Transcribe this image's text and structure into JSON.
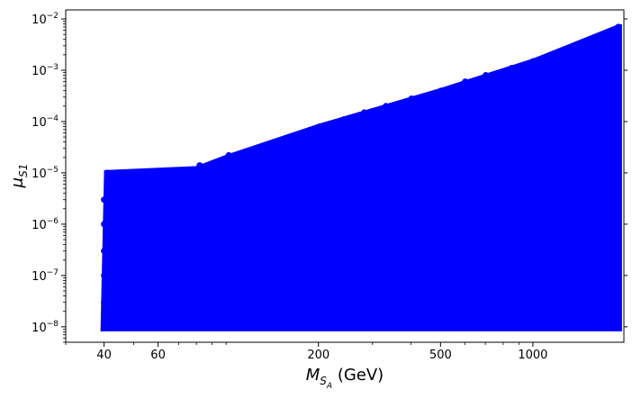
{
  "chart_data": {
    "type": "scatter",
    "xlabel": {
      "base": "M",
      "sub": "S",
      "subsub": "A",
      "unit": "(GeV)"
    },
    "ylabel": {
      "base": "μ",
      "sub": "S1"
    },
    "x_scale": "log",
    "y_scale": "log",
    "xlim": [
      30,
      1980
    ],
    "ylim": [
      5e-09,
      0.015
    ],
    "x_ticks": [
      {
        "value": 40,
        "label": "40"
      },
      {
        "value": 60,
        "label": "60"
      },
      {
        "value": 200,
        "label": "200"
      },
      {
        "value": 500,
        "label": "500"
      },
      {
        "value": 1000,
        "label": "1000"
      }
    ],
    "y_ticks": [
      {
        "value": 1e-08,
        "label_base": "10",
        "label_exp": "−8"
      },
      {
        "value": 1e-07,
        "label_base": "10",
        "label_exp": "−7"
      },
      {
        "value": 1e-06,
        "label_base": "10",
        "label_exp": "−6"
      },
      {
        "value": 1e-05,
        "label_base": "10",
        "label_exp": "−5"
      },
      {
        "value": 0.0001,
        "label_base": "10",
        "label_exp": "−4"
      },
      {
        "value": 0.001,
        "label_base": "10",
        "label_exp": "−3"
      },
      {
        "value": 0.01,
        "label_base": "10",
        "label_exp": "−2"
      }
    ],
    "grid": false,
    "series": [
      {
        "color": "#0000ff",
        "marker": "circle",
        "upper_envelope": [
          {
            "x": 40,
            "y": 1e-05
          },
          {
            "x": 80,
            "y": 1.2e-05
          },
          {
            "x": 100,
            "y": 2e-05
          },
          {
            "x": 200,
            "y": 8e-05
          },
          {
            "x": 500,
            "y": 0.0004
          },
          {
            "x": 1000,
            "y": 0.0015
          },
          {
            "x": 1900,
            "y": 0.007
          }
        ],
        "points": [
          {
            "x": 40,
            "y": 1e-08
          },
          {
            "x": 40,
            "y": 3e-08
          },
          {
            "x": 40,
            "y": 1e-07
          },
          {
            "x": 40,
            "y": 3e-07
          },
          {
            "x": 40,
            "y": 1e-06
          },
          {
            "x": 40,
            "y": 3e-06
          },
          {
            "x": 41,
            "y": 1e-05
          },
          {
            "x": 45,
            "y": 1.1e-08
          },
          {
            "x": 45,
            "y": 5e-08
          },
          {
            "x": 45,
            "y": 5e-07
          },
          {
            "x": 45,
            "y": 5e-06
          },
          {
            "x": 50,
            "y": 1.2e-08
          },
          {
            "x": 50,
            "y": 2e-07
          },
          {
            "x": 50,
            "y": 2e-06
          },
          {
            "x": 50,
            "y": 9e-06
          },
          {
            "x": 55,
            "y": 1e-08
          },
          {
            "x": 55,
            "y": 8e-08
          },
          {
            "x": 55,
            "y": 8e-07
          },
          {
            "x": 55,
            "y": 1e-05
          },
          {
            "x": 60,
            "y": 1.1e-08
          },
          {
            "x": 60,
            "y": 3e-08
          },
          {
            "x": 60,
            "y": 4e-07
          },
          {
            "x": 60,
            "y": 4e-06
          },
          {
            "x": 60,
            "y": 1e-05
          },
          {
            "x": 70,
            "y": 1e-08
          },
          {
            "x": 70,
            "y": 1.5e-07
          },
          {
            "x": 70,
            "y": 1.5e-06
          },
          {
            "x": 70,
            "y": 1.1e-05
          },
          {
            "x": 80,
            "y": 1.2e-08
          },
          {
            "x": 80,
            "y": 6e-08
          },
          {
            "x": 80,
            "y": 6e-07
          },
          {
            "x": 80,
            "y": 6e-06
          },
          {
            "x": 82,
            "y": 1.4e-05
          },
          {
            "x": 90,
            "y": 1e-08
          },
          {
            "x": 90,
            "y": 2.5e-07
          },
          {
            "x": 90,
            "y": 2.5e-06
          },
          {
            "x": 92,
            "y": 1.6e-05
          },
          {
            "x": 100,
            "y": 1.1e-08
          },
          {
            "x": 100,
            "y": 9e-08
          },
          {
            "x": 100,
            "y": 9e-07
          },
          {
            "x": 100,
            "y": 9e-06
          },
          {
            "x": 102,
            "y": 2.2e-05
          },
          {
            "x": 120,
            "y": 1e-08
          },
          {
            "x": 120,
            "y": 3.5e-07
          },
          {
            "x": 120,
            "y": 3.5e-06
          },
          {
            "x": 120,
            "y": 2.5e-05
          },
          {
            "x": 140,
            "y": 1.2e-08
          },
          {
            "x": 140,
            "y": 1.3e-07
          },
          {
            "x": 140,
            "y": 1.3e-06
          },
          {
            "x": 140,
            "y": 1.3e-05
          },
          {
            "x": 142,
            "y": 3.5e-05
          },
          {
            "x": 160,
            "y": 1e-08
          },
          {
            "x": 160,
            "y": 5e-07
          },
          {
            "x": 160,
            "y": 5e-06
          },
          {
            "x": 162,
            "y": 5e-05
          },
          {
            "x": 180,
            "y": 1.1e-08
          },
          {
            "x": 180,
            "y": 2e-07
          },
          {
            "x": 180,
            "y": 2e-06
          },
          {
            "x": 180,
            "y": 2e-05
          },
          {
            "x": 182,
            "y": 6e-05
          },
          {
            "x": 200,
            "y": 1e-08
          },
          {
            "x": 200,
            "y": 7e-08
          },
          {
            "x": 200,
            "y": 7e-07
          },
          {
            "x": 200,
            "y": 7e-06
          },
          {
            "x": 202,
            "y": 8e-05
          },
          {
            "x": 240,
            "y": 1.2e-08
          },
          {
            "x": 240,
            "y": 3e-07
          },
          {
            "x": 240,
            "y": 3e-06
          },
          {
            "x": 240,
            "y": 3e-05
          },
          {
            "x": 242,
            "y": 0.00011
          },
          {
            "x": 280,
            "y": 1e-08
          },
          {
            "x": 280,
            "y": 1.1e-07
          },
          {
            "x": 280,
            "y": 1.1e-06
          },
          {
            "x": 280,
            "y": 1.1e-05
          },
          {
            "x": 282,
            "y": 0.00015
          },
          {
            "x": 330,
            "y": 1.1e-08
          },
          {
            "x": 330,
            "y": 4e-07
          },
          {
            "x": 330,
            "y": 4e-06
          },
          {
            "x": 330,
            "y": 4e-05
          },
          {
            "x": 332,
            "y": 0.0002
          },
          {
            "x": 400,
            "y": 1e-08
          },
          {
            "x": 400,
            "y": 1.6e-07
          },
          {
            "x": 400,
            "y": 1.6e-06
          },
          {
            "x": 400,
            "y": 1.6e-05
          },
          {
            "x": 402,
            "y": 0.00028
          },
          {
            "x": 500,
            "y": 1.2e-08
          },
          {
            "x": 500,
            "y": 6e-07
          },
          {
            "x": 500,
            "y": 6e-06
          },
          {
            "x": 500,
            "y": 6e-05
          },
          {
            "x": 502,
            "y": 0.0004
          },
          {
            "x": 600,
            "y": 1e-08
          },
          {
            "x": 600,
            "y": 2.2e-07
          },
          {
            "x": 600,
            "y": 2.2e-06
          },
          {
            "x": 600,
            "y": 2.2e-05
          },
          {
            "x": 602,
            "y": 0.0006
          },
          {
            "x": 700,
            "y": 1.1e-08
          },
          {
            "x": 700,
            "y": 8e-08
          },
          {
            "x": 700,
            "y": 8e-07
          },
          {
            "x": 700,
            "y": 8e-06
          },
          {
            "x": 702,
            "y": 0.0008
          },
          {
            "x": 850,
            "y": 1e-08
          },
          {
            "x": 850,
            "y": 3e-07
          },
          {
            "x": 850,
            "y": 3e-06
          },
          {
            "x": 850,
            "y": 3e-05
          },
          {
            "x": 852,
            "y": 0.0011
          },
          {
            "x": 1000,
            "y": 1.2e-08
          },
          {
            "x": 1000,
            "y": 1.2e-07
          },
          {
            "x": 1000,
            "y": 1.2e-06
          },
          {
            "x": 1000,
            "y": 1.2e-05
          },
          {
            "x": 1000,
            "y": 0.00012
          },
          {
            "x": 1002,
            "y": 0.0015
          },
          {
            "x": 1200,
            "y": 1e-08
          },
          {
            "x": 1200,
            "y": 4.5e-07
          },
          {
            "x": 1200,
            "y": 4.5e-06
          },
          {
            "x": 1200,
            "y": 4.5e-05
          },
          {
            "x": 1200,
            "y": 0.00045
          },
          {
            "x": 1202,
            "y": 0.0022
          },
          {
            "x": 1450,
            "y": 1.1e-08
          },
          {
            "x": 1450,
            "y": 1.7e-07
          },
          {
            "x": 1450,
            "y": 1.7e-06
          },
          {
            "x": 1450,
            "y": 1.7e-05
          },
          {
            "x": 1450,
            "y": 0.00017
          },
          {
            "x": 1452,
            "y": 0.0035
          },
          {
            "x": 1700,
            "y": 1e-08
          },
          {
            "x": 1700,
            "y": 6.5e-07
          },
          {
            "x": 1700,
            "y": 6.5e-06
          },
          {
            "x": 1700,
            "y": 6.5e-05
          },
          {
            "x": 1700,
            "y": 0.00065
          },
          {
            "x": 1702,
            "y": 0.005
          },
          {
            "x": 1900,
            "y": 1.2e-08
          },
          {
            "x": 1900,
            "y": 2.5e-07
          },
          {
            "x": 1900,
            "y": 2.5e-06
          },
          {
            "x": 1900,
            "y": 2.5e-05
          },
          {
            "x": 1900,
            "y": 0.00025
          },
          {
            "x": 1900,
            "y": 0.007
          }
        ]
      }
    ]
  }
}
